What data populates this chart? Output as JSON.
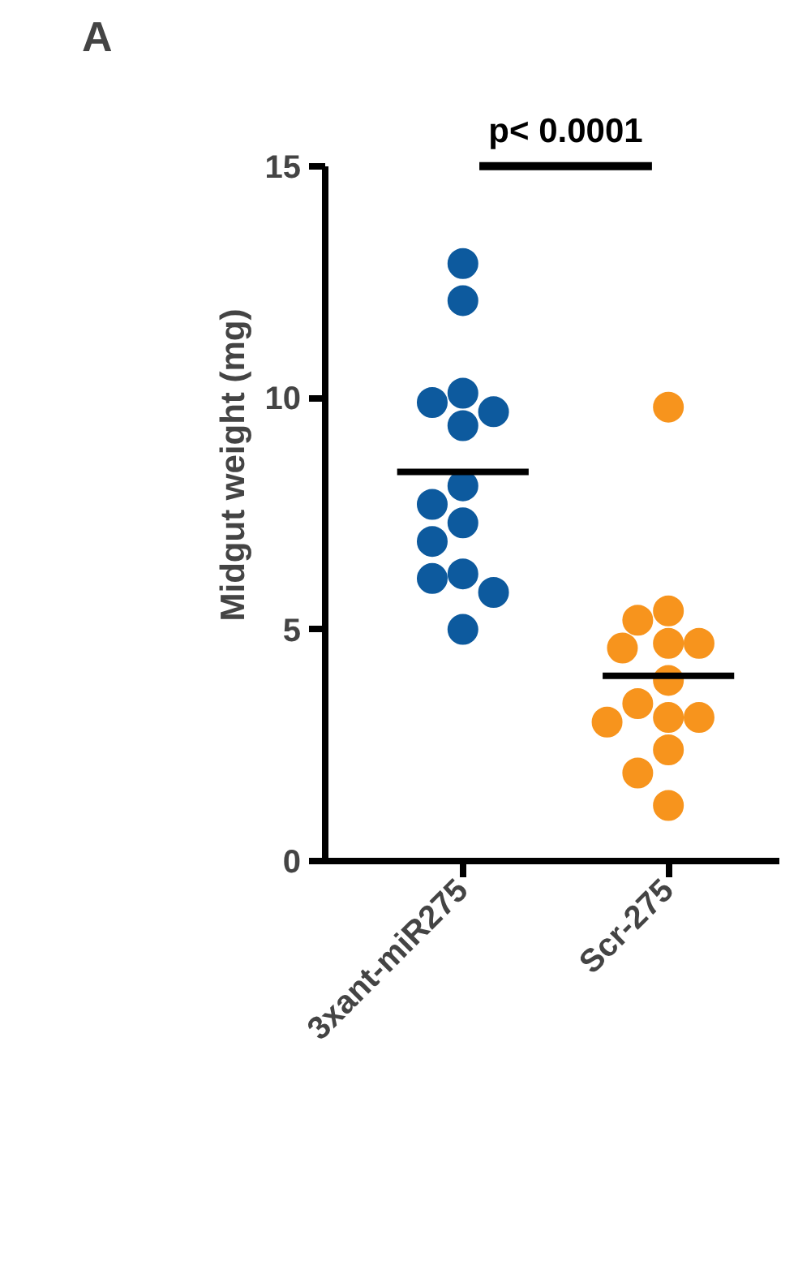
{
  "chart_data": {
    "type": "scatter",
    "title": "A",
    "ylabel": "Midgut weight (mg)",
    "categories": [
      "3xant-miR275",
      "Scr-275"
    ],
    "series": [
      {
        "color": "#0d5a9e",
        "x": [
          "3xant-miR275",
          "3xant-miR275",
          "3xant-miR275",
          "3xant-miR275",
          "3xant-miR275",
          "3xant-miR275",
          "3xant-miR275",
          "3xant-miR275",
          "3xant-miR275",
          "3xant-miR275",
          "3xant-miR275",
          "3xant-miR275",
          "3xant-miR275",
          "3xant-miR275"
        ],
        "values": [
          12.9,
          12.1,
          10.1,
          9.4,
          9.7,
          9.9,
          8.1,
          7.7,
          7.3,
          6.9,
          6.2,
          6.1,
          5.8,
          5.0
        ]
      },
      {
        "color": "#f7941d",
        "x": [
          "Scr-275",
          "Scr-275",
          "Scr-275",
          "Scr-275",
          "Scr-275",
          "Scr-275",
          "Scr-275",
          "Scr-275",
          "Scr-275",
          "Scr-275",
          "Scr-275",
          "Scr-275",
          "Scr-275",
          "Scr-275"
        ],
        "values": [
          9.8,
          5.4,
          5.2,
          4.7,
          4.7,
          4.6,
          3.9,
          3.4,
          3.1,
          3.1,
          3.0,
          2.4,
          1.9,
          1.2
        ]
      },
      {
        "type": "box",
        "color": "#000000",
        "boxes": [
          {
            "low": 8.4,
            "q1": 8.4,
            "median": 8.4,
            "q3": 8.4,
            "high": 8.4
          },
          {
            "low": 4.0,
            "q1": 4.0,
            "median": 4.0,
            "q3": 4.0,
            "high": 4.0
          }
        ]
      }
    ],
    "marker": "circle",
    "ylim": [
      0,
      15
    ],
    "yticks": [
      0,
      5,
      10,
      15
    ],
    "grid": false,
    "annotations": [
      "p< 0.0001"
    ]
  }
}
